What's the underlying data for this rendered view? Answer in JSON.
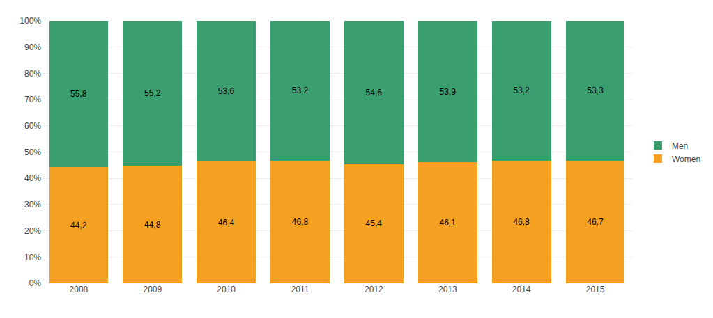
{
  "chart_data": {
    "type": "bar",
    "stacked": true,
    "categories": [
      "2008",
      "2009",
      "2010",
      "2011",
      "2012",
      "2013",
      "2014",
      "2015"
    ],
    "series": [
      {
        "name": "Women",
        "color": "#F4A020",
        "values": [
          44.2,
          44.8,
          46.4,
          46.8,
          45.4,
          46.1,
          46.8,
          46.7
        ],
        "value_labels": [
          "44,2",
          "44,8",
          "46,4",
          "46,8",
          "45,4",
          "46,1",
          "46,8",
          "46,7"
        ]
      },
      {
        "name": "Men",
        "color": "#3A9E6E",
        "values": [
          55.8,
          55.2,
          53.6,
          53.2,
          54.6,
          53.9,
          53.2,
          53.3
        ],
        "value_labels": [
          "55,8",
          "55,2",
          "53,6",
          "53,2",
          "54,6",
          "53,9",
          "53,2",
          "53,3"
        ]
      }
    ],
    "ylim": [
      0,
      100
    ],
    "yticks": [
      {
        "value": 0,
        "label": "0%"
      },
      {
        "value": 10,
        "label": "10%"
      },
      {
        "value": 20,
        "label": "20%"
      },
      {
        "value": 30,
        "label": "30%"
      },
      {
        "value": 40,
        "label": "40%"
      },
      {
        "value": 50,
        "label": "50%"
      },
      {
        "value": 60,
        "label": "60%"
      },
      {
        "value": 70,
        "label": "70%"
      },
      {
        "value": 80,
        "label": "80%"
      },
      {
        "value": 90,
        "label": "90%"
      },
      {
        "value": 100,
        "label": "100%"
      }
    ],
    "grid": true,
    "data_labels": true,
    "legend": "right"
  }
}
